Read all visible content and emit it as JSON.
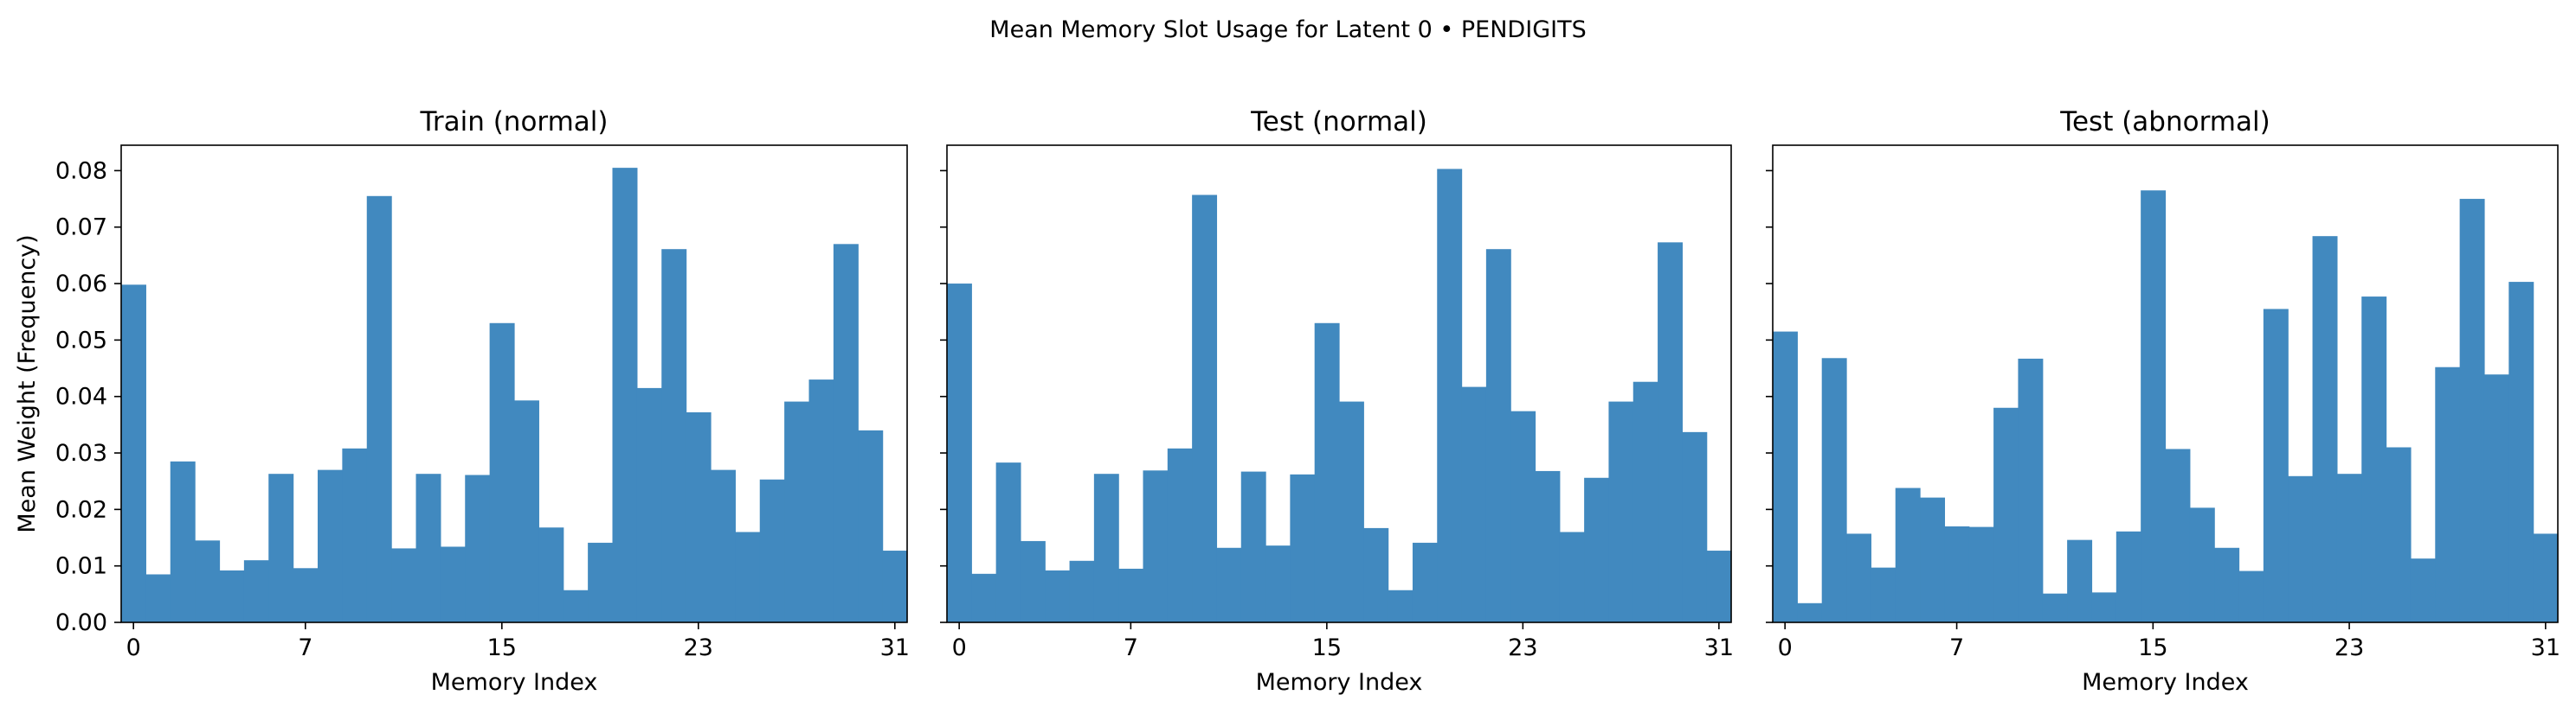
{
  "suptitle": "Mean Memory Slot Usage for Latent 0 • PENDIGITS",
  "chart_data": [
    {
      "type": "bar",
      "title": "Train (normal)",
      "xlabel": "Memory Index",
      "ylabel": "Mean Weight (Frequency)",
      "ylim": [
        0,
        0.0845
      ],
      "xlim": [
        -0.5,
        31.5
      ],
      "xticks": [
        0,
        7,
        15,
        23,
        31
      ],
      "yticks": [
        0.0,
        0.01,
        0.02,
        0.03,
        0.04,
        0.05,
        0.06,
        0.07,
        0.08
      ],
      "ytick_labels": [
        "0.00",
        "0.01",
        "0.02",
        "0.03",
        "0.04",
        "0.05",
        "0.06",
        "0.07",
        "0.08"
      ],
      "categories": [
        0,
        1,
        2,
        3,
        4,
        5,
        6,
        7,
        8,
        9,
        10,
        11,
        12,
        13,
        14,
        15,
        16,
        17,
        18,
        19,
        20,
        21,
        22,
        23,
        24,
        25,
        26,
        27,
        28,
        29,
        30,
        31
      ],
      "values": [
        0.0598,
        0.0085,
        0.0285,
        0.0145,
        0.0092,
        0.011,
        0.0263,
        0.0096,
        0.027,
        0.0308,
        0.0755,
        0.0131,
        0.0263,
        0.0134,
        0.0261,
        0.053,
        0.0393,
        0.0168,
        0.0057,
        0.0141,
        0.0805,
        0.0415,
        0.0661,
        0.0372,
        0.027,
        0.016,
        0.0253,
        0.0391,
        0.043,
        0.067,
        0.034,
        0.0127
      ],
      "color": "#4189bf",
      "grid": false
    },
    {
      "type": "bar",
      "title": "Test (normal)",
      "xlabel": "Memory Index",
      "ylabel": "",
      "ylim": [
        0,
        0.0845
      ],
      "xlim": [
        -0.5,
        31.5
      ],
      "xticks": [
        0,
        7,
        15,
        23,
        31
      ],
      "categories": [
        0,
        1,
        2,
        3,
        4,
        5,
        6,
        7,
        8,
        9,
        10,
        11,
        12,
        13,
        14,
        15,
        16,
        17,
        18,
        19,
        20,
        21,
        22,
        23,
        24,
        25,
        26,
        27,
        28,
        29,
        30,
        31
      ],
      "values": [
        0.06,
        0.0086,
        0.0283,
        0.0144,
        0.0092,
        0.0109,
        0.0263,
        0.0095,
        0.0269,
        0.0308,
        0.0757,
        0.0132,
        0.0267,
        0.0136,
        0.0262,
        0.053,
        0.0391,
        0.0167,
        0.0057,
        0.0141,
        0.0803,
        0.0417,
        0.0661,
        0.0374,
        0.0268,
        0.016,
        0.0256,
        0.0391,
        0.0426,
        0.0673,
        0.0337,
        0.0127
      ],
      "color": "#4189bf",
      "grid": false
    },
    {
      "type": "bar",
      "title": "Test (abnormal)",
      "xlabel": "Memory Index",
      "ylabel": "",
      "ylim": [
        0,
        0.0845
      ],
      "xlim": [
        -0.5,
        31.5
      ],
      "xticks": [
        0,
        7,
        15,
        23,
        31
      ],
      "categories": [
        0,
        1,
        2,
        3,
        4,
        5,
        6,
        7,
        8,
        9,
        10,
        11,
        12,
        13,
        14,
        15,
        16,
        17,
        18,
        19,
        20,
        21,
        22,
        23,
        24,
        25,
        26,
        27,
        28,
        29,
        30,
        31
      ],
      "values": [
        0.0515,
        0.0034,
        0.0468,
        0.0157,
        0.0097,
        0.0238,
        0.0221,
        0.017,
        0.0169,
        0.038,
        0.0467,
        0.0051,
        0.0146,
        0.0053,
        0.0161,
        0.0765,
        0.0307,
        0.0203,
        0.0132,
        0.0091,
        0.0555,
        0.0259,
        0.0684,
        0.0263,
        0.0577,
        0.031,
        0.0113,
        0.0452,
        0.075,
        0.0439,
        0.0603,
        0.0157
      ],
      "color": "#4189bf",
      "grid": false
    }
  ]
}
